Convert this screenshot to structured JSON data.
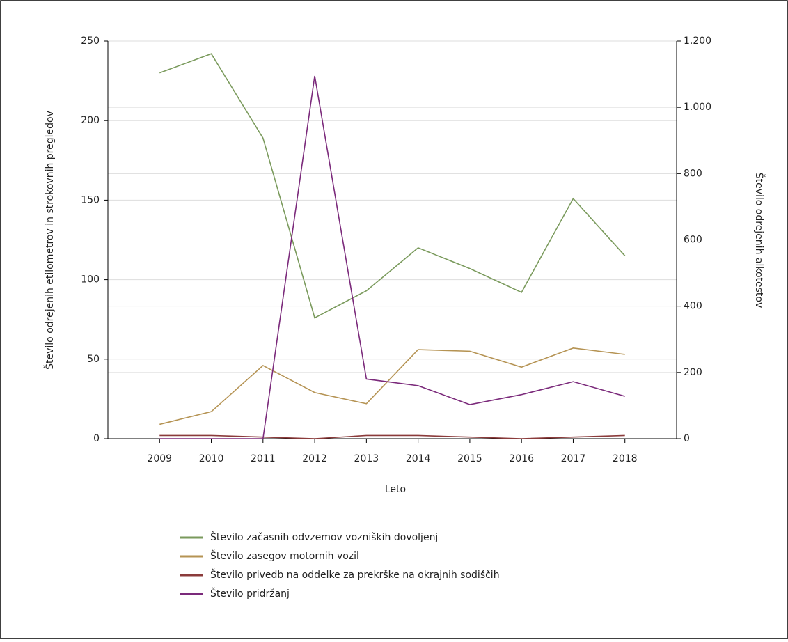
{
  "chart_data": {
    "type": "line",
    "x_label": "Leto",
    "y_label": "Število odrejenih etilometrov in strokovnih pregledov",
    "y2_label": "Število odrejenih alkotestov",
    "x": [
      2009,
      2010,
      2011,
      2012,
      2013,
      2014,
      2015,
      2016,
      2017,
      2018
    ],
    "xlim": [
      2008,
      2019
    ],
    "xticks": [
      2009,
      2010,
      2011,
      2012,
      2013,
      2014,
      2015,
      2016,
      2017,
      2018
    ],
    "ylim": [
      0,
      250
    ],
    "yticks": [
      0,
      50,
      100,
      150,
      200,
      250
    ],
    "y2lim": [
      0,
      1200
    ],
    "y2ticks": [
      0,
      200,
      400,
      600,
      800,
      {
        "value": 1000,
        "label": "1.000"
      },
      {
        "value": 1200,
        "label": "1.200"
      }
    ],
    "grid": true,
    "legend": "bottom",
    "series": [
      {
        "name": "Število začasnih odvzemov vozniških dovoljenj",
        "color": "#7a9a5c",
        "values": [
          230,
          242,
          189,
          76,
          93,
          120,
          107,
          92,
          151,
          115
        ]
      },
      {
        "name": "Število zasegov motornih vozil",
        "color": "#b59353",
        "values": [
          9,
          17,
          46,
          29,
          22,
          56,
          55,
          45,
          57,
          53
        ]
      },
      {
        "name": "Število privedb na oddelke za prekrške na okrajnih sodiščih",
        "color": "#8b3b3b",
        "values": [
          2,
          2,
          1,
          0,
          2,
          2,
          1,
          0,
          1,
          2
        ]
      },
      {
        "name": "Število pridržanj",
        "color": "#7b2a7b",
        "axis": "y2",
        "values": [
          0,
          0,
          0,
          1095,
          180,
          160,
          103,
          133,
          172,
          128
        ]
      }
    ]
  }
}
